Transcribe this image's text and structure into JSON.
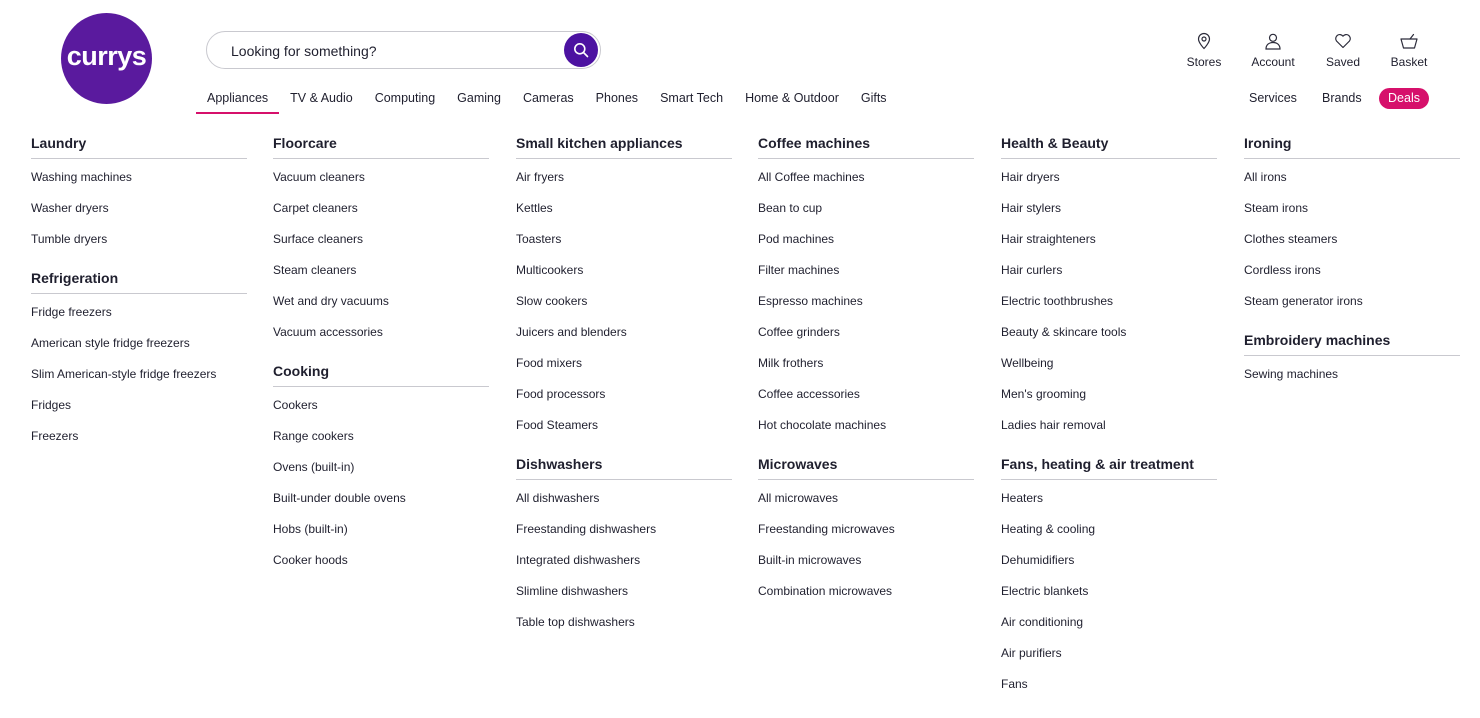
{
  "brand": {
    "logo_text": "currys",
    "color": "#5a1a9e"
  },
  "search": {
    "placeholder": "Looking for something?",
    "value": "",
    "button_icon": "search-icon"
  },
  "header_links": [
    {
      "label": "Stores",
      "icon": "map-pin-icon"
    },
    {
      "label": "Account",
      "icon": "user-icon"
    },
    {
      "label": "Saved",
      "icon": "heart-icon"
    },
    {
      "label": "Basket",
      "icon": "basket-icon"
    }
  ],
  "nav": {
    "items": [
      "Appliances",
      "TV & Audio",
      "Computing",
      "Gaming",
      "Cameras",
      "Phones",
      "Smart Tech",
      "Home & Outdoor",
      "Gifts"
    ],
    "active": "Appliances",
    "right": [
      "Services",
      "Brands"
    ],
    "deals": "Deals"
  },
  "colors": {
    "accent": "#d6106b",
    "search_button": "#4c12a1"
  },
  "menu": {
    "columns": [
      {
        "groups": [
          {
            "heading": "Laundry",
            "links": [
              "Washing machines",
              "Washer dryers",
              "Tumble dryers"
            ]
          },
          {
            "heading": "Refrigeration",
            "links": [
              "Fridge freezers",
              "American style fridge freezers",
              "Slim American-style fridge freezers",
              "Fridges",
              "Freezers"
            ]
          }
        ]
      },
      {
        "groups": [
          {
            "heading": "Floorcare",
            "links": [
              "Vacuum cleaners",
              "Carpet cleaners",
              "Surface cleaners",
              "Steam cleaners",
              "Wet and dry vacuums",
              "Vacuum accessories"
            ]
          },
          {
            "heading": "Cooking",
            "links": [
              "Cookers",
              "Range cookers",
              "Ovens (built-in)",
              "Built-under double ovens",
              "Hobs (built-in)",
              "Cooker hoods"
            ]
          }
        ]
      },
      {
        "groups": [
          {
            "heading": "Small kitchen appliances",
            "links": [
              "Air fryers",
              "Kettles",
              "Toasters",
              "Multicookers",
              "Slow cookers",
              "Juicers and blenders",
              "Food mixers",
              "Food processors",
              "Food Steamers"
            ]
          },
          {
            "heading": "Dishwashers",
            "links": [
              "All dishwashers",
              "Freestanding dishwashers",
              "Integrated dishwashers",
              "Slimline dishwashers",
              "Table top dishwashers"
            ]
          }
        ]
      },
      {
        "groups": [
          {
            "heading": "Coffee machines",
            "links": [
              "All Coffee machines",
              "Bean to cup",
              "Pod machines",
              "Filter machines",
              "Espresso machines",
              "Coffee grinders",
              "Milk frothers",
              "Coffee accessories",
              "Hot chocolate machines"
            ]
          },
          {
            "heading": "Microwaves",
            "links": [
              "All microwaves",
              "Freestanding microwaves",
              "Built-in microwaves",
              "Combination microwaves"
            ]
          }
        ]
      },
      {
        "groups": [
          {
            "heading": "Health & Beauty",
            "links": [
              "Hair dryers",
              "Hair stylers",
              "Hair straighteners",
              "Hair curlers",
              "Electric toothbrushes",
              "Beauty & skincare tools",
              "Wellbeing",
              "Men's grooming",
              "Ladies hair removal"
            ]
          },
          {
            "heading": "Fans, heating & air treatment",
            "links": [
              "Heaters",
              "Heating & cooling",
              "Dehumidifiers",
              "Electric blankets",
              "Air conditioning",
              "Air purifiers",
              "Fans"
            ]
          }
        ]
      },
      {
        "groups": [
          {
            "heading": "Ironing",
            "links": [
              "All irons",
              "Steam irons",
              "Clothes steamers",
              "Cordless irons",
              "Steam generator irons"
            ]
          },
          {
            "heading": "Embroidery machines",
            "links": [
              "Sewing machines"
            ]
          }
        ]
      }
    ]
  }
}
